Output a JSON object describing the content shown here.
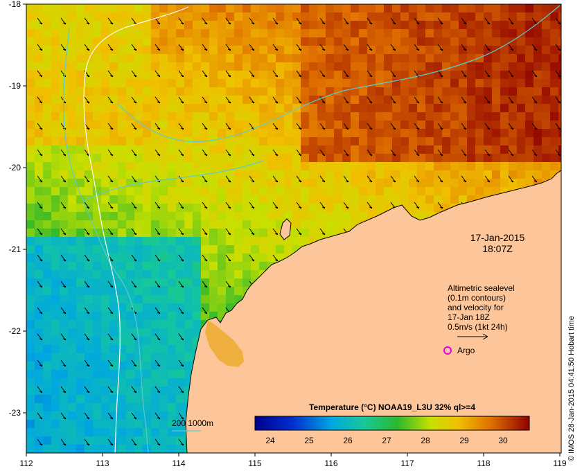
{
  "date_label": "17-Jan-2015",
  "time_label": "18:07Z",
  "altimetry_note": [
    "Altimetric sealevel",
    "(0.1m contours)",
    "and velocity for",
    "17-Jan 18Z",
    "0.5m/s (1kt 24h)"
  ],
  "argo_label": "Argo",
  "depth_legend": "200  1000m",
  "colorbar_title": "Temperature (°C) NOAA19_L3U 32% ql>=4",
  "colorbar_ticks": [
    "24",
    "25",
    "26",
    "27",
    "28",
    "29",
    "30"
  ],
  "copyright": "© IMOS 28-Jan-2015 04:41:50 Hobart time",
  "x_ticks": [
    "112",
    "113",
    "114",
    "115",
    "116",
    "117",
    "118",
    "119"
  ],
  "y_ticks": [
    "-18",
    "-19",
    "-20",
    "-21",
    "-22",
    "-23"
  ],
  "colors": {
    "land": "#fdc69a",
    "contour_200": "#5ccbd0",
    "contour_1000": "#ffffff",
    "argo": "#e600e6"
  }
}
